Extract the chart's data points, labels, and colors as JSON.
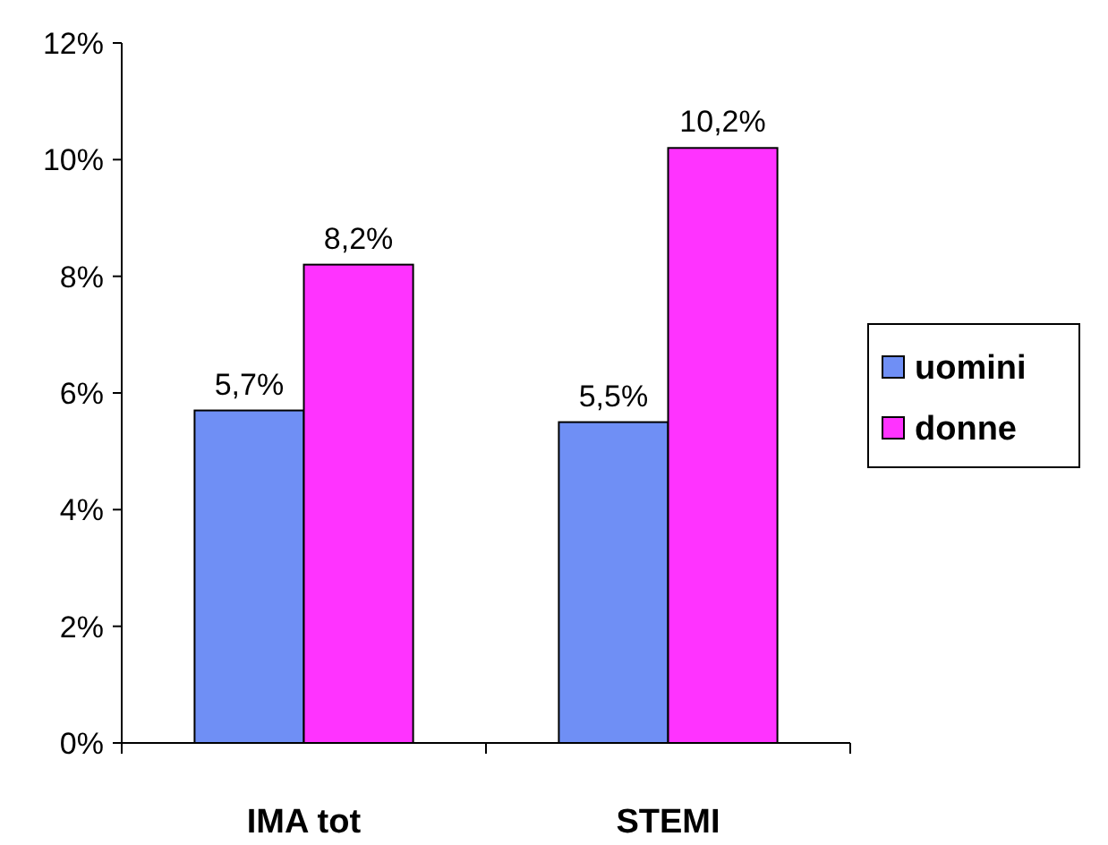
{
  "chart_data": {
    "type": "bar",
    "categories": [
      "IMA tot",
      "STEMI"
    ],
    "series": [
      {
        "name": "uomini",
        "color": "#6f8ff5",
        "values": [
          5.7,
          5.5
        ],
        "value_labels": [
          "5,7%",
          "5,5%"
        ]
      },
      {
        "name": "donne",
        "color": "#ff33ff",
        "values": [
          8.2,
          10.2
        ],
        "value_labels": [
          "8,2%",
          "10,2%"
        ]
      }
    ],
    "ylim": [
      0,
      12
    ],
    "yticks": [
      {
        "value": 0,
        "label": "0%"
      },
      {
        "value": 2,
        "label": "2%"
      },
      {
        "value": 4,
        "label": "4%"
      },
      {
        "value": 6,
        "label": "6%"
      },
      {
        "value": 8,
        "label": "8%"
      },
      {
        "value": 10,
        "label": "10%"
      },
      {
        "value": 12,
        "label": "12%"
      }
    ],
    "legend": "right",
    "grid": false
  }
}
